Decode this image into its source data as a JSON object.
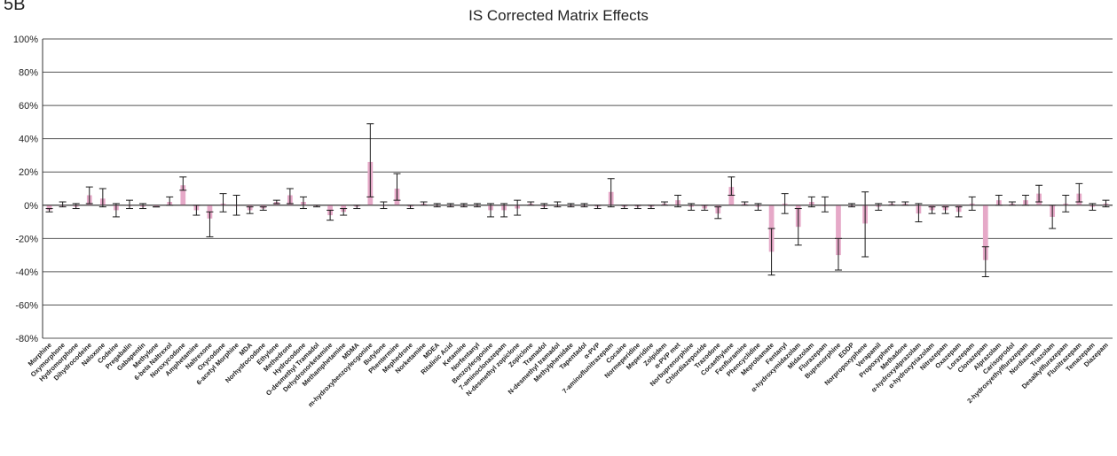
{
  "panel_label": "5B",
  "chart_data": {
    "type": "bar",
    "title": "IS Corrected Matrix Effects",
    "xlabel": "",
    "ylabel": "",
    "ylim": [
      -80,
      100
    ],
    "yticks": [
      100,
      80,
      60,
      40,
      20,
      0,
      -20,
      -40,
      -60,
      -80
    ],
    "ytick_format": "percent",
    "grid": true,
    "legend": "none",
    "colors": {
      "bar": "#e6a9c8",
      "error_bar": "#1a1a1a",
      "grid": "#555555",
      "axis": "#333333"
    },
    "categories": [
      "Morphine",
      "Oxymorphone",
      "Hydromorphone",
      "Dihydrocodeine",
      "Naloxone",
      "Codeine",
      "Pregabalin",
      "Gabapentin",
      "Methylone",
      "6-beta Naltrexol",
      "Noroxycodone",
      "Amphetamine",
      "Naltrexone",
      "Oxycodone",
      "6-acetyl Morphine",
      "MDA",
      "Norhydrocodone",
      "Ethylone",
      "Methedrone",
      "Hydrocodone",
      "O-desmethyl Tramadol",
      "Dehydronorketamine",
      "Methamphetamine",
      "MDMA",
      "m-hydroxybenzoylecgonine",
      "Butylone",
      "Phentermine",
      "Mephedrone",
      "Norketamine",
      "MDEA",
      "Ritalinic Acid",
      "Ketamine",
      "Norfentanyl",
      "Benzoylecgonine",
      "7-aminoclonazepam",
      "N-desmethyl zopiclone",
      "Zopiclone",
      "Tramadol",
      "N-desmethyl tramadol",
      "Methylphenidate",
      "Tapentadol",
      "α-PVP",
      "7-aminoflunitrazepam",
      "Cocaine",
      "Normeperidine",
      "Meperidine",
      "Zolpidem",
      "α-PVP met",
      "Norbuprenorphine",
      "Chlordiazepoxide",
      "Trazodone",
      "Cocaethylene",
      "Fenfluramine",
      "Phencyclidine",
      "Meprobamate",
      "Fentanyl",
      "α-hydroxymidazolam",
      "Midazolam",
      "Flurazepam",
      "Buprenorphine",
      "EDDP",
      "Norpropoxyphene",
      "Verapamil",
      "Propoxyphene",
      "Methadone",
      "α-hydroxyalprazolam",
      "α-hydroxytriazolam",
      "Nitrazepam",
      "Oxazepam",
      "Lorazepam",
      "Clonazepam",
      "Alprazolam",
      "Carisoprodol",
      "2-hydroxyethylflurazepam",
      "Nordiazepam",
      "Triazolam",
      "Desalkylflurazepam",
      "Flunitrazepam",
      "Temazepam",
      "Diazepam"
    ],
    "values": [
      -3,
      0,
      -1,
      6,
      4,
      -3,
      0,
      -1,
      -1,
      2,
      12,
      -3,
      -8,
      1,
      0,
      -3,
      -2,
      2,
      6,
      2,
      0,
      -6,
      -4,
      -1,
      26,
      0,
      10,
      -1,
      1,
      0,
      0,
      0,
      0,
      -3,
      -3,
      -2,
      1,
      -1,
      0,
      0,
      0,
      -1,
      8,
      -1,
      -1,
      -1,
      1,
      3,
      -1,
      -2,
      -5,
      11,
      1,
      -1,
      -28,
      1,
      -13,
      2,
      0,
      -30,
      0,
      -11,
      -1,
      1,
      1,
      -5,
      -3,
      -3,
      -4,
      1,
      -33,
      3,
      1,
      3,
      7,
      -7,
      1,
      7,
      -1,
      1
    ],
    "error_low": [
      -4,
      -1,
      -2,
      1,
      -1,
      -7,
      -2,
      -2,
      -1,
      0,
      9,
      -6,
      -19,
      -4,
      -6,
      -5,
      -3,
      1,
      1,
      -2,
      -1,
      -9,
      -6,
      -2,
      5,
      -2,
      3,
      -2,
      0,
      -1,
      -1,
      -1,
      -1,
      -7,
      -7,
      -6,
      0,
      -2,
      -1,
      -1,
      -1,
      -2,
      -1,
      -2,
      -2,
      -2,
      0,
      -1,
      -3,
      -3,
      -8,
      6,
      0,
      -3,
      -42,
      -5,
      -24,
      -1,
      -4,
      -39,
      -1,
      -31,
      -3,
      0,
      0,
      -10,
      -5,
      -5,
      -7,
      -3,
      -43,
      0,
      0,
      0,
      2,
      -14,
      -4,
      2,
      -3,
      -1
    ],
    "error_high": [
      -2,
      2,
      1,
      11,
      10,
      1,
      3,
      1,
      -1,
      5,
      17,
      0,
      -4,
      7,
      6,
      -1,
      -1,
      3,
      10,
      5,
      0,
      -3,
      -2,
      0,
      49,
      2,
      19,
      0,
      2,
      1,
      1,
      1,
      1,
      1,
      1,
      3,
      2,
      1,
      2,
      1,
      1,
      0,
      16,
      0,
      0,
      0,
      2,
      6,
      1,
      0,
      -1,
      17,
      2,
      1,
      -14,
      7,
      -2,
      5,
      5,
      -20,
      1,
      8,
      1,
      2,
      2,
      1,
      -1,
      -1,
      -1,
      5,
      -25,
      6,
      2,
      6,
      12,
      0,
      6,
      13,
      1,
      3
    ]
  }
}
